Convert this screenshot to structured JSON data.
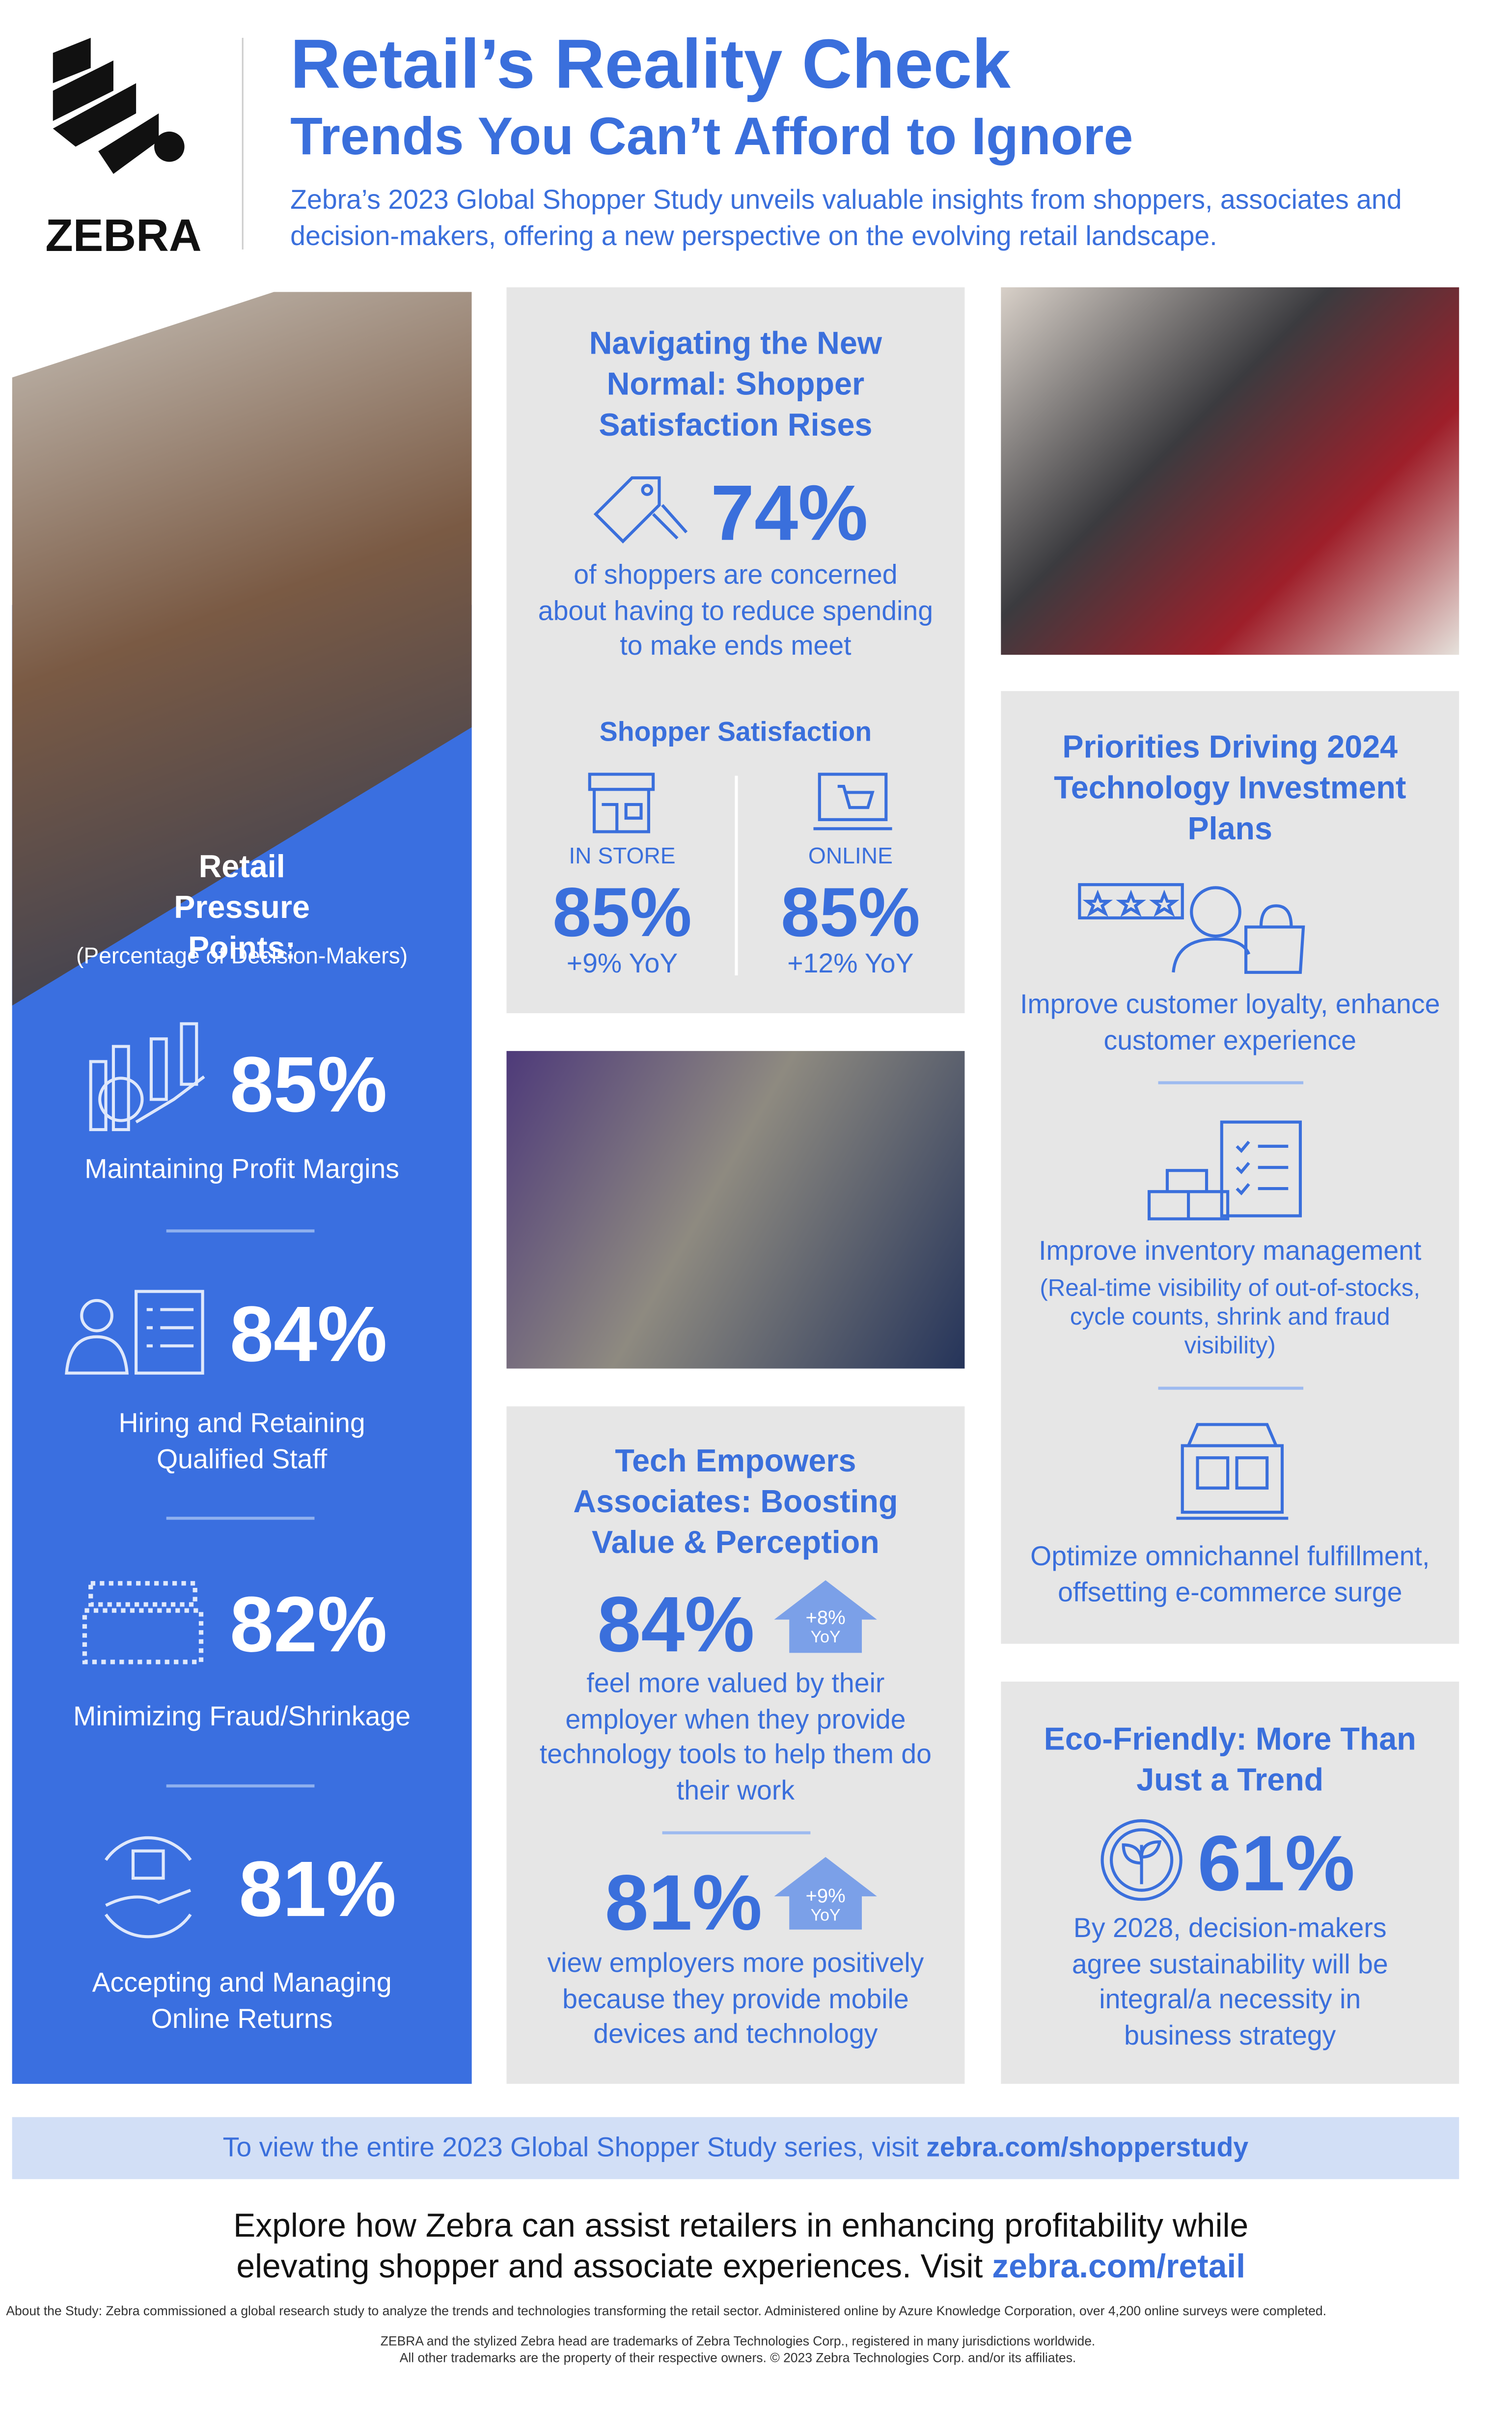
{
  "header": {
    "logo_text": "ZEBRA",
    "title": "Retail’s Reality Check",
    "subtitle": "Trends You Can’t Afford to Ignore",
    "intro": "Zebra’s 2023 Global Shopper Study unveils valuable insights from shoppers, associates and decision-makers, offering a new perspective on the evolving retail landscape."
  },
  "pressure": {
    "title": "Retail Pressure Points:",
    "note": "(Percentage of Decision-Makers)",
    "items": [
      {
        "value": "85%",
        "label": "Maintaining Profit Margins"
      },
      {
        "value": "84%",
        "label": "Hiring and Retaining Qualified Staff"
      },
      {
        "value": "82%",
        "label": "Minimizing Fraud/Shrinkage"
      },
      {
        "value": "81%",
        "label": "Accepting and Managing Online Returns"
      }
    ]
  },
  "normal": {
    "title": "Navigating the New Normal: Shopper Satisfaction Rises",
    "stat": "74%",
    "text": "of shoppers are concerned about having to reduce spending to make ends meet",
    "satisfaction_title": "Shopper Satisfaction",
    "channels": [
      {
        "label": "IN STORE",
        "value": "85%",
        "change": "+9% YoY"
      },
      {
        "label": "ONLINE",
        "value": "85%",
        "change": "+12% YoY"
      }
    ]
  },
  "tech": {
    "title": "Tech Empowers Associates: Boosting Value & Perception",
    "stats": [
      {
        "value": "84%",
        "badge_value": "+8%",
        "badge_unit": "YoY",
        "text": "feel more valued by their employer when they provide technology tools to help them do their work"
      },
      {
        "value": "81%",
        "badge_value": "+9%",
        "badge_unit": "YoY",
        "text": "view employers more positively because they provide mobile devices and technology"
      }
    ]
  },
  "priorities": {
    "title": "Priorities Driving 2024 Technology Investment Plans",
    "items": [
      {
        "text": "Improve customer loyalty, enhance customer experience"
      },
      {
        "text": "Improve inventory management",
        "note": "(Real-time visibility of out-of-stocks, cycle counts, shrink and fraud visibility)"
      },
      {
        "text": "Optimize omnichannel fulfillment, offsetting e-commerce surge"
      }
    ]
  },
  "eco": {
    "title": "Eco-Friendly: More Than Just a Trend",
    "stat": "61%",
    "text": "By 2028, decision-makers agree sustainability will be integral/a necessity in business strategy"
  },
  "footer": {
    "view_text": "To view the entire 2023 Global Shopper Study series, visit",
    "view_link": "zebra.com/shopperstudy",
    "explore_text": "Explore how Zebra can assist retailers in enhancing profitability while elevating shopper and associate experiences. Visit",
    "explore_link": "zebra.com/retail",
    "about": "About the Study: Zebra commissioned a global research study to analyze the trends and technologies transforming the retail sector. Administered online by Azure Knowledge Corporation, over 4,200 online surveys were completed.",
    "trademark_1": "ZEBRA and the stylized Zebra head are trademarks of Zebra Technologies Corp., registered in many jurisdictions worldwide.",
    "trademark_2": "All other trademarks are the property of their respective owners. © 2023 Zebra Technologies Corp. and/or its affiliates."
  }
}
